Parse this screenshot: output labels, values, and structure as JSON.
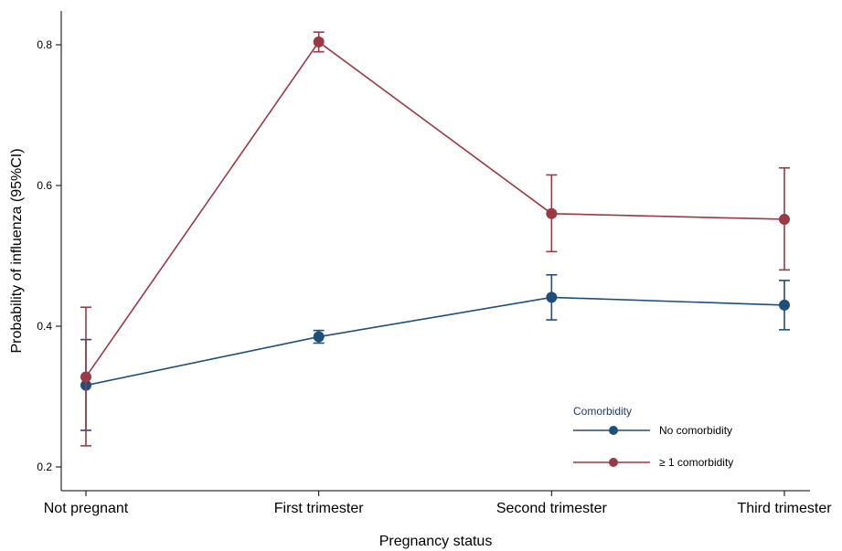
{
  "chart_data": {
    "type": "line",
    "xlabel": "Pregnancy status",
    "ylabel": "Probability of influenza (95%CI)",
    "categories": [
      "Not pregnant",
      "First trimester",
      "Second trimester",
      "Third trimester"
    ],
    "yticks": [
      "0.2",
      "0.4",
      "0.6",
      "0.8"
    ],
    "ytick_values": [
      0.2,
      0.4,
      0.6,
      0.8
    ],
    "ylim": [
      0.2,
      0.85
    ],
    "grid": false,
    "legend": {
      "title": "Comorbidity",
      "position": "bottom-right"
    },
    "series": [
      {
        "name": "No comorbidity",
        "color": "#1f4e79",
        "values": [
          0.316,
          0.385,
          0.441,
          0.43
        ],
        "ci_lower": [
          0.252,
          0.376,
          0.409,
          0.395
        ],
        "ci_upper": [
          0.381,
          0.394,
          0.473,
          0.465
        ]
      },
      {
        "name": "≥ 1 comorbidity",
        "color": "#9b3a45",
        "values": [
          0.328,
          0.804,
          0.56,
          0.552
        ],
        "ci_lower": [
          0.23,
          0.79,
          0.506,
          0.48
        ],
        "ci_upper": [
          0.427,
          0.818,
          0.615,
          0.625
        ]
      }
    ]
  }
}
